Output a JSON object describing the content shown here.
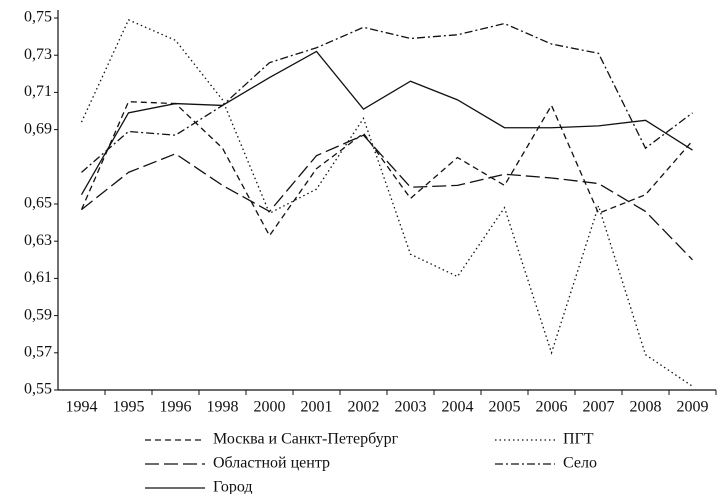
{
  "chart_data": {
    "type": "line",
    "categories": [
      "1994",
      "1995",
      "1996",
      "1998",
      "2000",
      "2001",
      "2002",
      "2003",
      "2004",
      "2005",
      "2006",
      "2007",
      "2008",
      "2009"
    ],
    "series": [
      {
        "name": "Москва и Санкт-Петербург",
        "color": "#111111",
        "dash": "6,4",
        "values": [
          0.647,
          0.705,
          0.704,
          0.68,
          0.633,
          0.669,
          0.688,
          0.653,
          0.675,
          0.66,
          0.703,
          0.645,
          0.655,
          0.684
        ]
      },
      {
        "name": "ПГТ",
        "color": "#111111",
        "dash": "1.5,3",
        "values": [
          0.694,
          0.749,
          0.738,
          0.706,
          0.645,
          0.658,
          0.696,
          0.623,
          0.611,
          0.648,
          0.57,
          0.649,
          0.569,
          0.552
        ]
      },
      {
        "name": "Областной центр",
        "color": "#111111",
        "dash": "14,5",
        "values": [
          0.647,
          0.667,
          0.677,
          0.66,
          0.646,
          0.676,
          0.687,
          0.659,
          0.66,
          0.666,
          0.664,
          0.661,
          0.646,
          0.62
        ]
      },
      {
        "name": "Село",
        "color": "#111111",
        "dash": "8,3,2,3",
        "values": [
          0.667,
          0.689,
          0.687,
          0.703,
          0.726,
          0.734,
          0.745,
          0.739,
          0.741,
          0.747,
          0.736,
          0.731,
          0.68,
          0.699
        ]
      },
      {
        "name": "Город",
        "color": "#111111",
        "dash": "none",
        "values": [
          0.655,
          0.699,
          0.704,
          0.703,
          0.718,
          0.732,
          0.701,
          0.716,
          0.706,
          0.691,
          0.691,
          0.692,
          0.695,
          0.679
        ]
      }
    ],
    "ylim": [
      0.55,
      0.75
    ],
    "yticks": [
      {
        "value": 0.75,
        "label": "0,75"
      },
      {
        "value": 0.73,
        "label": "0,73"
      },
      {
        "value": 0.71,
        "label": "0,71"
      },
      {
        "value": 0.69,
        "label": "0,69"
      },
      {
        "value": 0.65,
        "label": "0,65"
      },
      {
        "value": 0.63,
        "label": "0,63"
      },
      {
        "value": 0.61,
        "label": "0,61"
      },
      {
        "value": 0.59,
        "label": "0,59"
      },
      {
        "value": 0.57,
        "label": "0,57"
      },
      {
        "value": 0.55,
        "label": "0,55"
      }
    ],
    "grid": false
  }
}
